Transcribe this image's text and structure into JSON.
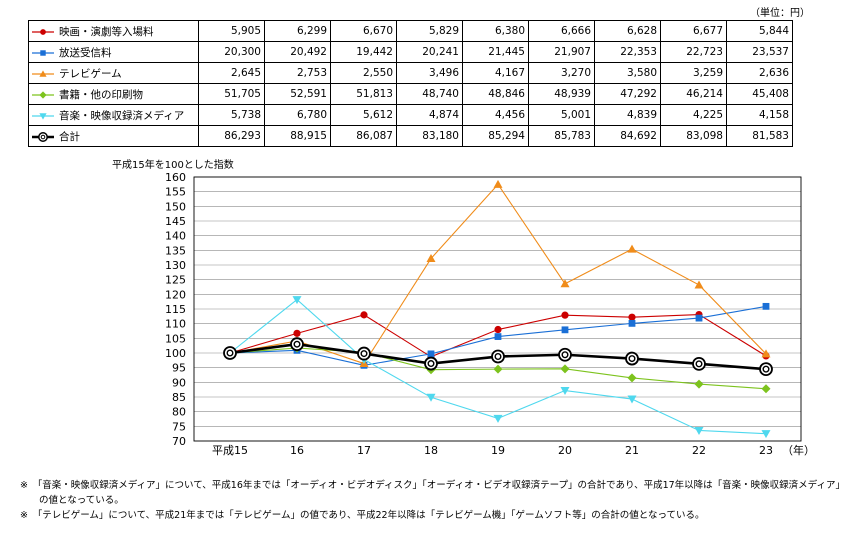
{
  "unit_label": "（単位：円）",
  "index_label": "平成15年を100とした指数",
  "year_unit": "（年）",
  "table": {
    "rows": [
      {
        "name": "映画・演劇等入場料",
        "values": [
          "5,905",
          "6,299",
          "6,670",
          "5,829",
          "6,380",
          "6,666",
          "6,628",
          "6,677",
          "5,844"
        ]
      },
      {
        "name": "放送受信料",
        "values": [
          "20,300",
          "20,492",
          "19,442",
          "20,241",
          "21,445",
          "21,907",
          "22,353",
          "22,723",
          "23,537"
        ]
      },
      {
        "name": "テレビゲーム",
        "values": [
          "2,645",
          "2,753",
          "2,550",
          "3,496",
          "4,167",
          "3,270",
          "3,580",
          "3,259",
          "2,636"
        ]
      },
      {
        "name": "書籍・他の印刷物",
        "values": [
          "51,705",
          "52,591",
          "51,813",
          "48,740",
          "48,846",
          "48,939",
          "47,292",
          "46,214",
          "45,408"
        ]
      },
      {
        "name": "音楽・映像収録済メディア",
        "values": [
          "5,738",
          "6,780",
          "5,612",
          "4,874",
          "4,456",
          "5,001",
          "4,839",
          "4,225",
          "4,158"
        ]
      },
      {
        "name": "合計",
        "values": [
          "86,293",
          "88,915",
          "86,087",
          "83,180",
          "85,294",
          "85,783",
          "84,692",
          "83,098",
          "81,583"
        ]
      }
    ]
  },
  "chart_data": {
    "type": "line",
    "categories": [
      "平成15",
      "16",
      "17",
      "18",
      "19",
      "20",
      "21",
      "22",
      "23"
    ],
    "ylim": [
      70,
      160
    ],
    "yticks": [
      70,
      75,
      80,
      85,
      90,
      95,
      100,
      105,
      110,
      115,
      120,
      125,
      130,
      135,
      140,
      145,
      150,
      155,
      160
    ],
    "grid": "horizontal",
    "series": [
      {
        "name": "映画・演劇等入場料",
        "color": "#cc0000",
        "marker": "circle",
        "values": [
          100,
          106.7,
          113.0,
          98.7,
          108.0,
          112.9,
          112.2,
          113.1,
          99.0
        ]
      },
      {
        "name": "放送受信料",
        "color": "#1a6fd6",
        "marker": "square",
        "values": [
          100,
          100.9,
          95.8,
          99.7,
          105.6,
          107.9,
          110.1,
          111.9,
          115.9
        ]
      },
      {
        "name": "テレビゲーム",
        "color": "#f08c1a",
        "marker": "triangle-up",
        "values": [
          100,
          104.1,
          96.4,
          132.2,
          157.5,
          123.6,
          135.4,
          123.2,
          99.7
        ]
      },
      {
        "name": "書籍・他の印刷物",
        "color": "#7dc31e",
        "marker": "diamond",
        "values": [
          100,
          101.7,
          100.2,
          94.3,
          94.5,
          94.6,
          91.5,
          89.4,
          87.8
        ]
      },
      {
        "name": "音楽・映像収録済メディア",
        "color": "#4fd8ee",
        "marker": "triangle-down",
        "values": [
          100,
          118.2,
          97.8,
          84.9,
          77.7,
          87.2,
          84.3,
          73.6,
          72.5
        ]
      },
      {
        "name": "合計",
        "color": "#000000",
        "marker": "double-circle",
        "values": [
          100,
          103.0,
          99.8,
          96.4,
          98.8,
          99.4,
          98.1,
          96.3,
          94.5
        ]
      }
    ]
  },
  "notes": [
    "※　「音楽・映像収録済メディア」について、平成16年までは「オーディオ・ビデオディスク」「オーディオ・ビデオ収録済テープ」の合計であり、平成17年以降は「音楽・映像収録済メディア」",
    "　　の値となっている。",
    "※　「テレビゲーム」について、平成21年までは「テレビゲーム」の値であり、平成22年以降は「テレビゲーム機」「ゲームソフト等」の合計の値となっている。"
  ]
}
